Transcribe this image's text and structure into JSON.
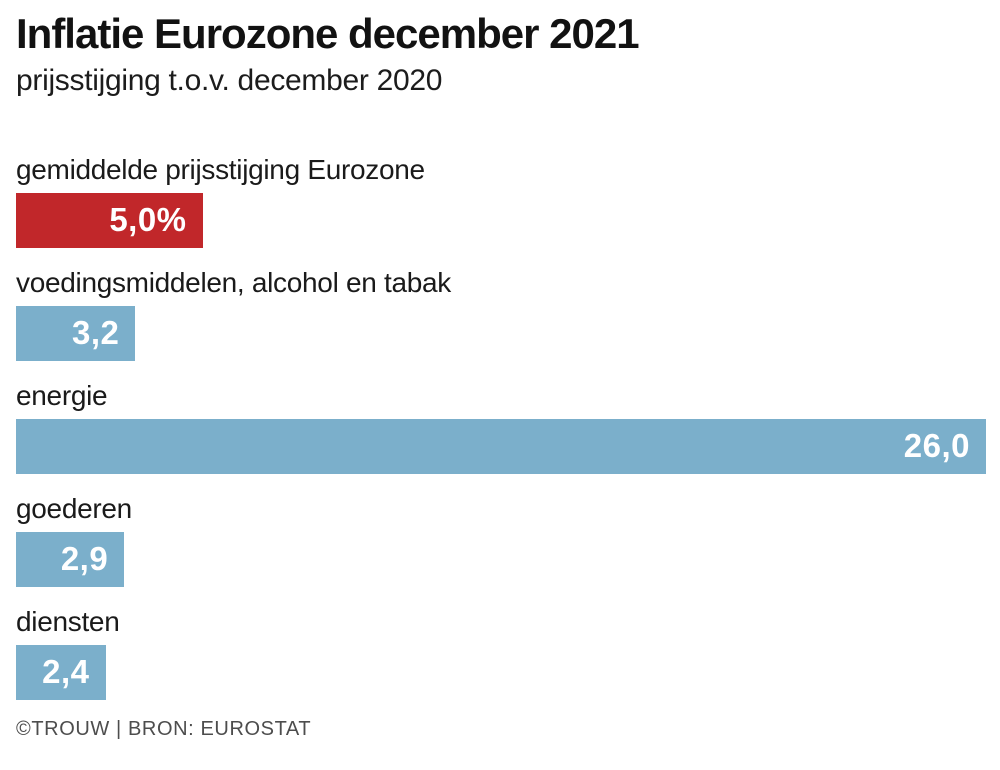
{
  "header": {
    "title": "Inflatie Eurozone december 2021",
    "subtitle": "prijsstijging t.o.v. december 2020"
  },
  "chart_data": {
    "type": "bar",
    "orientation": "horizontal",
    "title": "Inflatie Eurozone december 2021",
    "subtitle": "prijsstijging t.o.v. december 2020",
    "unit": "percent",
    "xlabel": "",
    "ylabel": "",
    "xlim": [
      0,
      26.0
    ],
    "grid": false,
    "legend": false,
    "categories": [
      "gemiddelde prijsstijging Eurozone",
      "voedingsmiddelen, alcohol en tabak",
      "energie",
      "goederen",
      "diensten"
    ],
    "values": [
      5.0,
      3.2,
      26.0,
      2.9,
      2.4
    ],
    "rows": [
      {
        "label": "gemiddelde prijsstijging Eurozone",
        "value": 5.0,
        "display": "5,0%",
        "color": "#c1272a"
      },
      {
        "label": "voedingsmiddelen, alcohol en tabak",
        "value": 3.2,
        "display": "3,2",
        "color": "#7bafcb"
      },
      {
        "label": "energie",
        "value": 26.0,
        "display": "26,0",
        "color": "#7bafcb"
      },
      {
        "label": "goederen",
        "value": 2.9,
        "display": "2,9",
        "color": "#7bafcb"
      },
      {
        "label": "diensten",
        "value": 2.4,
        "display": "2,4",
        "color": "#7bafcb"
      }
    ],
    "colors": {
      "highlight": "#c1272a",
      "default": "#7bafcb"
    }
  },
  "footer": {
    "credit": "©TROUW | BRON: EUROSTAT"
  }
}
